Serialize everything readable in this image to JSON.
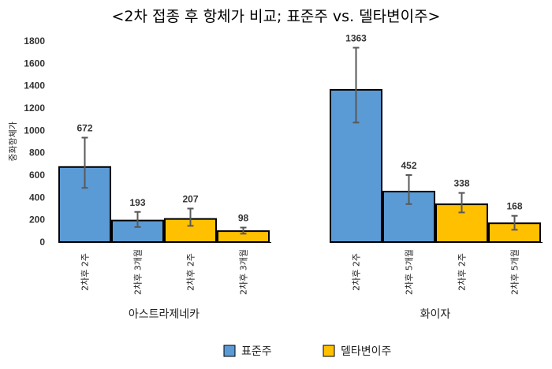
{
  "title": "<2차 접종 후 항체가 비교; 표준주 vs. 델타변이주>",
  "chart_data": {
    "type": "bar",
    "ylabel": "중화항체가",
    "ylim": [
      0,
      1800
    ],
    "yticks": [
      0,
      200,
      400,
      600,
      800,
      1000,
      1200,
      1400,
      1600,
      1800
    ],
    "grid": false,
    "legend_position": "bottom",
    "groups": [
      {
        "name": "아스트라제네카",
        "categories": [
          "2차후 2주",
          "2차후 3개월",
          "2차후 2주",
          "2차후 3개월"
        ],
        "values": [
          672,
          193,
          207,
          98
        ],
        "error_low": [
          485,
          135,
          145,
          75
        ],
        "error_high": [
          935,
          270,
          300,
          130
        ],
        "series_index": [
          0,
          0,
          1,
          1
        ]
      },
      {
        "name": "화이자",
        "categories": [
          "2차후 2주",
          "2차후 5개월",
          "2차후 2주",
          "2차후 5개월"
        ],
        "values": [
          1363,
          452,
          338,
          168
        ],
        "error_low": [
          1070,
          340,
          265,
          110
        ],
        "error_high": [
          1740,
          600,
          440,
          235
        ],
        "series_index": [
          0,
          0,
          1,
          1
        ]
      }
    ],
    "series": [
      {
        "name": "표준주",
        "color": "#5b9bd5"
      },
      {
        "name": "델타변이주",
        "color": "#ffc000"
      }
    ]
  }
}
